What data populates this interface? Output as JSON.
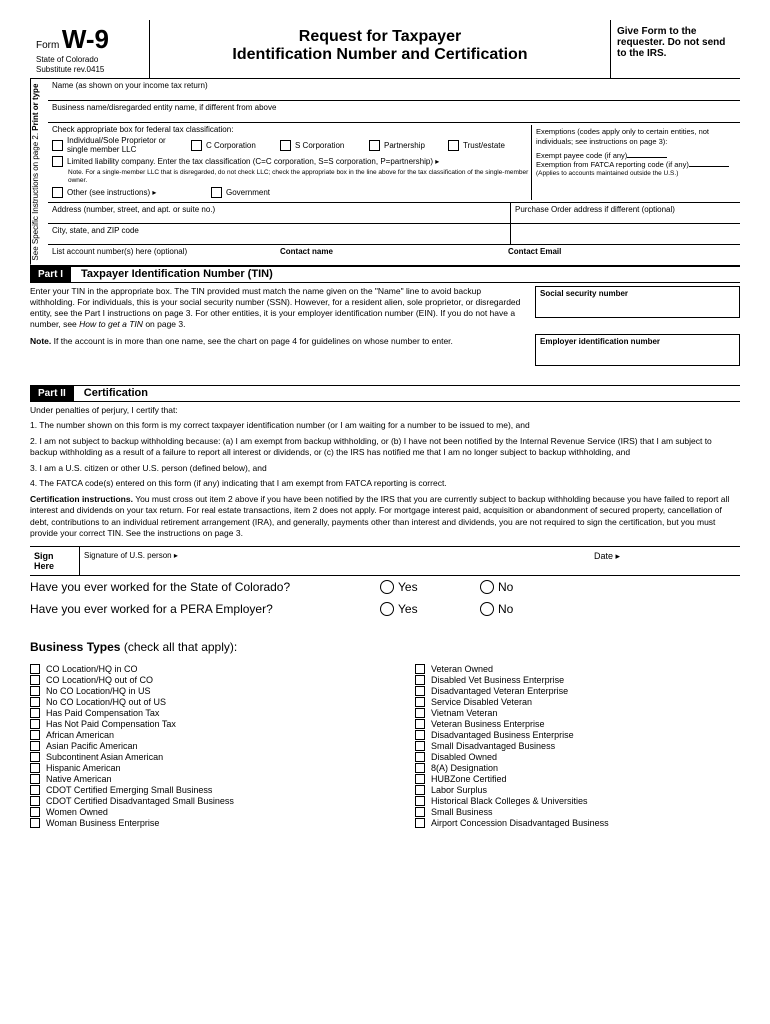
{
  "header": {
    "form_label": "Form",
    "form_number": "W-9",
    "state": "State of Colorado",
    "substitute": "Substitute rev.0415",
    "title_line1": "Request for Taxpayer",
    "title_line2": "Identification Number and Certification",
    "right_text": "Give Form to the requester. Do not send to the IRS."
  },
  "sidebar": {
    "line1": "Print or type",
    "line2": "See Specific Instructions on page 2."
  },
  "fields": {
    "name": "Name (as shown on your income tax return)",
    "business_name": "Business name/disregarded entity name, if different from above",
    "classification_label": "Check appropriate box for federal tax classification:",
    "opt_individual": "Individual/Sole Proprietor or single member LLC",
    "opt_ccorp": "C Corporation",
    "opt_scorp": "S Corporation",
    "opt_partnership": "Partnership",
    "opt_trust": "Trust/estate",
    "opt_llc": "Limited liability company. Enter the tax classification (C=C corporation, S=S corporation, P=partnership) ▸",
    "llc_note": "Note. For a single-member LLC that is disregarded, do not check LLC; check the appropriate box in the line above for the tax classification of the single-member owner.",
    "opt_other": "Other (see instructions) ▸",
    "opt_gov": "Government",
    "exemptions_text": "Exemptions (codes apply only to certain entities, not individuals; see instructions on page 3):",
    "exempt_payee": "Exempt payee code (if any)",
    "exempt_fatca": "Exemption from FATCA reporting code (if any)",
    "exempt_note": "(Applies to accounts maintained outside the U.S.)",
    "address": "Address (number, street, and apt. or suite no.)",
    "po_address": "Purchase Order address if different (optional)",
    "city": "City, state, and ZIP code",
    "account_numbers": "List account number(s) here (optional)",
    "contact_name": "Contact name",
    "contact_email": "Contact Email"
  },
  "part1": {
    "badge": "Part I",
    "title": "Taxpayer Identification Number (TIN)",
    "text": "Enter your TIN in the appropriate box. The TIN provided must match the name given on the \"Name\" line to avoid backup withholding. For individuals, this is your social security number (SSN). However, for a resident alien, sole proprietor, or disregarded entity, see the Part I instructions on page 3. For other entities, it is your employer identification number (EIN). If you do not have a number, see",
    "text_italic": "How to get a TIN",
    "text_end": "on page 3.",
    "note_label": "Note.",
    "note_text": "If the account is in more than one name, see the chart on page 4 for guidelines on whose number to enter.",
    "ssn_label": "Social security number",
    "ein_label": "Employer identification number"
  },
  "part2": {
    "badge": "Part II",
    "title": "Certification",
    "intro": "Under penalties of perjury, I certify that:",
    "item1": "1.  The number shown on this form is my correct taxpayer identification number (or I am waiting for a number to be issued to me), and",
    "item2": "2.  I am not subject to backup withholding because: (a) I am exempt from backup withholding, or (b) I have not been notified by the Internal Revenue Service (IRS) that I am subject to backup withholding as a result of a failure to report all interest or dividends, or (c) the IRS has notified me that I am no longer subject to backup withholding, and",
    "item3": "3.  I am a U.S. citizen or other U.S. person (defined below), and",
    "item4": "4. The FATCA code(s) entered on this form (if any) indicating that I am exempt from FATCA reporting is correct.",
    "cert_instr_label": "Certification instructions.",
    "cert_instr": "You must cross out item 2 above if you have been notified by the IRS that you are currently subject to backup withholding because you have failed to report all interest and dividends on your tax return. For real estate transactions, item 2 does not apply. For mortgage interest paid, acquisition or abandonment of secured property, cancellation of debt, contributions to an individual retirement arrangement (IRA), and generally, payments other than interest and dividends, you are not required to sign the certification, but you must provide your correct TIN. See the instructions on page 3."
  },
  "sign": {
    "here": "Sign Here",
    "sig_label": "Signature of U.S. person ▸",
    "date_label": "Date ▸"
  },
  "questions": {
    "q1": "Have you ever worked for the State of Colorado?",
    "q2": "Have you ever worked for a PERA Employer?",
    "yes": "Yes",
    "no": "No"
  },
  "business": {
    "header_bold": "Business Types",
    "header_rest": "(check all that apply):",
    "col1": [
      "CO Location/HQ in CO",
      "CO Location/HQ out of CO",
      "No CO Location/HQ in US",
      "No CO Location/HQ out of US",
      "Has Paid Compensation Tax",
      "Has Not Paid Compensation Tax",
      "African American",
      "Asian Pacific American",
      "Subcontinent Asian American",
      "Hispanic American",
      "Native American",
      "CDOT Certified Emerging Small Business",
      "CDOT Certified Disadvantaged Small Business",
      "Women Owned",
      "Woman Business Enterprise"
    ],
    "col2": [
      "Veteran Owned",
      "Disabled Vet Business Enterprise",
      "Disadvantaged Veteran Enterprise",
      "Service Disabled Veteran",
      "Vietnam Veteran",
      "Veteran Business Enterprise",
      "Disadvantaged Business Enterprise",
      "Small Disadvantaged Business",
      "Disabled Owned",
      "8(A) Designation",
      "HUBZone Certified",
      "Labor Surplus",
      "Historical Black Colleges & Universities",
      "Small Business",
      "Airport Concession Disadvantaged Business"
    ]
  }
}
